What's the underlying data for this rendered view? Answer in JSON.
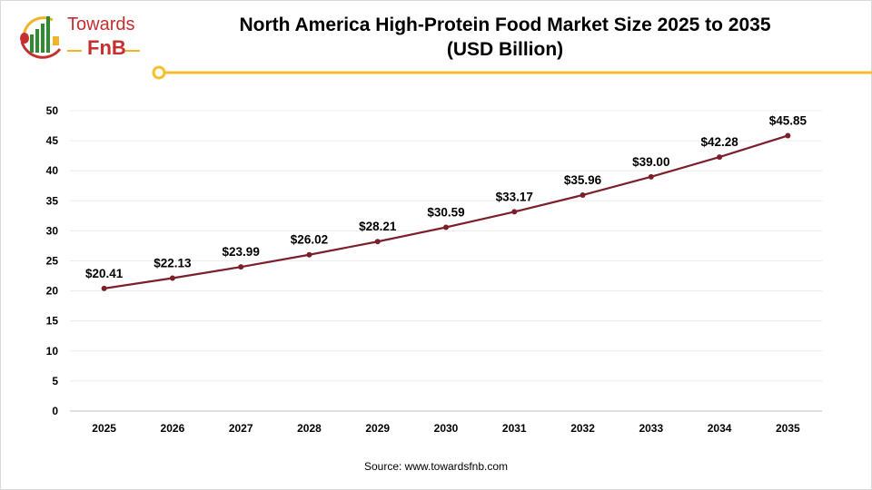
{
  "logo": {
    "line1": "Towards",
    "line2": "FnB"
  },
  "source": "Source: www.towardsfnb.com",
  "colors": {
    "line": "#7b1f2b",
    "accent": "#f5c02c",
    "grid": "#ececec"
  },
  "chart_data": {
    "type": "line",
    "title": "North America High-Protein Food Market Size 2025 to 2035",
    "subtitle": "(USD Billion)",
    "categories": [
      "2025",
      "2026",
      "2027",
      "2028",
      "2029",
      "2030",
      "2031",
      "2032",
      "2033",
      "2034",
      "2035"
    ],
    "values": [
      20.41,
      22.13,
      23.99,
      26.02,
      28.21,
      30.59,
      33.17,
      35.96,
      39.0,
      42.28,
      45.85
    ],
    "data_labels": [
      "$20.41",
      "$22.13",
      "$23.99",
      "$26.02",
      "$28.21",
      "$30.59",
      "$33.17",
      "$35.96",
      "$39.00",
      "$42.28",
      "$45.85"
    ],
    "yticks": [
      "0",
      "5",
      "10",
      "15",
      "20",
      "25",
      "30",
      "35",
      "40",
      "45",
      "50"
    ],
    "ylim": [
      0,
      50
    ],
    "grid": true,
    "xlabel": "",
    "ylabel": ""
  }
}
